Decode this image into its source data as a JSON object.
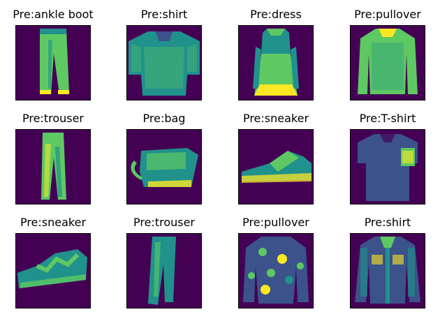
{
  "colors": {
    "background": "#440154",
    "dark": "#3b528b",
    "mid": "#21918c",
    "light": "#5ec962",
    "bright": "#fde725"
  },
  "panels": [
    {
      "label": "Pre:ankle boot",
      "icon": "trousers-icon"
    },
    {
      "label": "Pre:shirt",
      "icon": "shirt-icon"
    },
    {
      "label": "Pre:dress",
      "icon": "dress-icon"
    },
    {
      "label": "Pre:pullover",
      "icon": "pullover-icon"
    },
    {
      "label": "Pre:trouser",
      "icon": "trousers-icon"
    },
    {
      "label": "Pre:bag",
      "icon": "bag-icon"
    },
    {
      "label": "Pre:sneaker",
      "icon": "sneaker-icon"
    },
    {
      "label": "Pre:T-shirt",
      "icon": "tshirt-icon"
    },
    {
      "label": "Pre:sneaker",
      "icon": "sandal-icon"
    },
    {
      "label": "Pre:trouser",
      "icon": "trousers-icon"
    },
    {
      "label": "Pre:pullover",
      "icon": "pullover-icon"
    },
    {
      "label": "Pre:shirt",
      "icon": "jacket-icon"
    }
  ]
}
